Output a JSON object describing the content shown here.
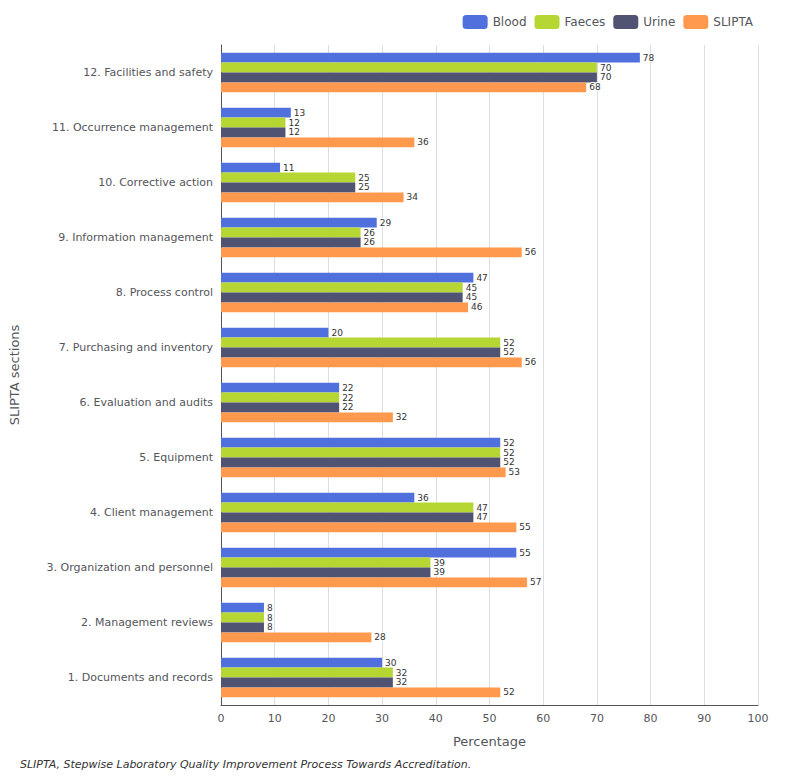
{
  "chart_data": {
    "type": "bar",
    "orientation": "horizontal",
    "categories": [
      "1. Documents and records",
      "2. Management reviews",
      "3. Organization and personnel",
      "4. Client management",
      "5. Equipment",
      "6. Evaluation and audits",
      "7. Purchasing and inventory",
      "8. Process control",
      "9. Information management",
      "10. Corrective action",
      "11. Occurrence management",
      "12. Facilities and safety"
    ],
    "series": [
      {
        "name": "Blood",
        "values": [
          30,
          8,
          55,
          36,
          52,
          22,
          20,
          47,
          29,
          11,
          13,
          78
        ]
      },
      {
        "name": "Faeces",
        "values": [
          32,
          8,
          39,
          47,
          52,
          22,
          52,
          45,
          26,
          25,
          12,
          70
        ]
      },
      {
        "name": "Urine",
        "values": [
          32,
          8,
          39,
          47,
          52,
          22,
          52,
          45,
          26,
          25,
          12,
          70
        ]
      },
      {
        "name": "SLIPTA",
        "values": [
          52,
          28,
          57,
          55,
          53,
          32,
          56,
          46,
          56,
          34,
          36,
          68
        ]
      }
    ],
    "xlabel": "Percentage",
    "ylabel": "SLIPTA sections",
    "xlim": [
      0,
      100
    ],
    "xticks": [
      0,
      10,
      20,
      30,
      40,
      50,
      60,
      70,
      80,
      90,
      100
    ],
    "grid": true,
    "legend": "top right",
    "data_labels": true,
    "footnote": "SLIPTA, Stepwise Laboratory Quality Improvement Process Towards Accreditation."
  }
}
